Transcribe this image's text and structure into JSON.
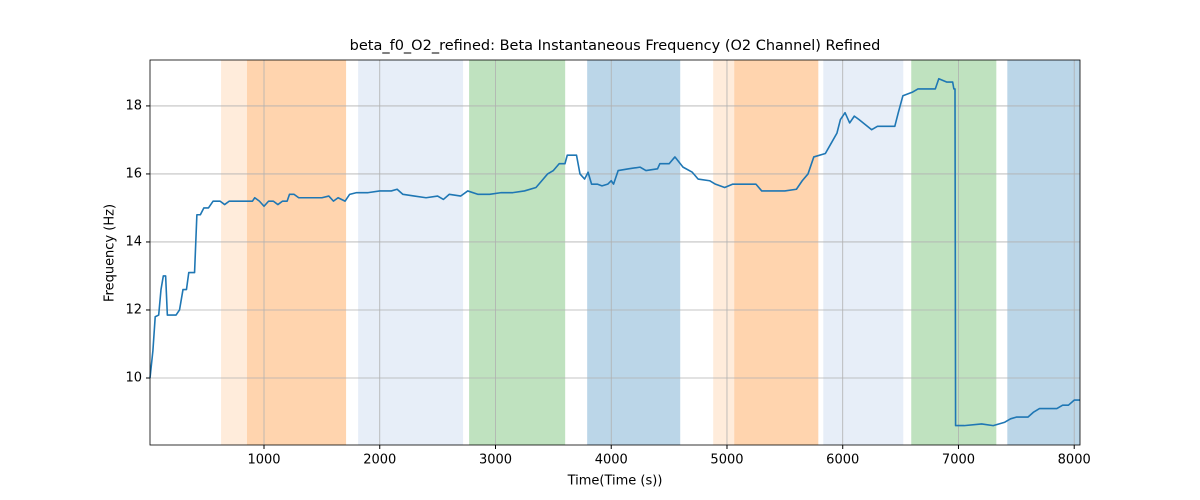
{
  "chart_data": {
    "type": "line",
    "title": "beta_f0_O2_refined: Beta Instantaneous Frequency (O2 Channel) Refined",
    "x_label": "Time(Time (s))",
    "y_label": "Frequency (Hz)",
    "color": "#1f77b4",
    "grid": true,
    "xlim": [
      15,
      8050
    ],
    "ylim": [
      8.03,
      19.35
    ],
    "xticks": [
      1000,
      2000,
      3000,
      4000,
      5000,
      6000,
      7000,
      8000
    ],
    "yticks": [
      10,
      12,
      14,
      16,
      18
    ],
    "spans": [
      {
        "x0": 629,
        "x1": 1709,
        "color": "#ff7f0e",
        "alpha": 0.15
      },
      {
        "x0": 853,
        "x1": 1709,
        "color": "#ff7f0e",
        "alpha": 0.22
      },
      {
        "x0": 1813,
        "x1": 2720,
        "color": "#aec7e8",
        "alpha": 0.3
      },
      {
        "x0": 2772,
        "x1": 3602,
        "color": "#2ca02c",
        "alpha": 0.3
      },
      {
        "x0": 3792,
        "x1": 4596,
        "color": "#1f77b4",
        "alpha": 0.3
      },
      {
        "x0": 4881,
        "x1": 5789,
        "color": "#ff7f0e",
        "alpha": 0.15
      },
      {
        "x0": 5063,
        "x1": 5789,
        "color": "#ff7f0e",
        "alpha": 0.22
      },
      {
        "x0": 5832,
        "x1": 6523,
        "color": "#aec7e8",
        "alpha": 0.3
      },
      {
        "x0": 6592,
        "x1": 7327,
        "color": "#2ca02c",
        "alpha": 0.3
      },
      {
        "x0": 7422,
        "x1": 8050,
        "color": "#1f77b4",
        "alpha": 0.3
      }
    ],
    "x": [
      15,
      40,
      60,
      90,
      110,
      130,
      150,
      165,
      240,
      270,
      300,
      330,
      350,
      400,
      420,
      450,
      480,
      520,
      560,
      620,
      660,
      700,
      900,
      920,
      960,
      1000,
      1040,
      1080,
      1120,
      1160,
      1200,
      1220,
      1260,
      1300,
      1400,
      1500,
      1560,
      1600,
      1640,
      1700,
      1740,
      1800,
      1900,
      2000,
      2100,
      2150,
      2200,
      2300,
      2400,
      2500,
      2550,
      2600,
      2700,
      2760,
      2850,
      2950,
      3050,
      3150,
      3250,
      3350,
      3400,
      3450,
      3500,
      3550,
      3600,
      3620,
      3700,
      3730,
      3770,
      3800,
      3830,
      3880,
      3920,
      3970,
      4000,
      4020,
      4060,
      4150,
      4250,
      4300,
      4400,
      4420,
      4500,
      4550,
      4620,
      4700,
      4750,
      4850,
      4900,
      4980,
      5050,
      5250,
      5300,
      5400,
      5500,
      5600,
      5650,
      5700,
      5750,
      5850,
      5900,
      5950,
      5980,
      6020,
      6060,
      6100,
      6140,
      6250,
      6300,
      6450,
      6480,
      6520,
      6600,
      6650,
      6800,
      6830,
      6900,
      6950,
      6960,
      6970,
      6975,
      7050,
      7200,
      7300,
      7400,
      7450,
      7500,
      7600,
      7650,
      7700,
      7800,
      7850,
      7900,
      7950,
      8000,
      8050
    ],
    "values": [
      10.0,
      10.8,
      11.8,
      11.85,
      12.6,
      13.0,
      13.0,
      11.85,
      11.85,
      12.0,
      12.6,
      12.6,
      13.1,
      13.1,
      14.8,
      14.8,
      15.0,
      15.0,
      15.2,
      15.2,
      15.1,
      15.2,
      15.2,
      15.3,
      15.2,
      15.05,
      15.2,
      15.2,
      15.1,
      15.2,
      15.2,
      15.4,
      15.4,
      15.3,
      15.3,
      15.3,
      15.35,
      15.2,
      15.3,
      15.2,
      15.4,
      15.45,
      15.45,
      15.5,
      15.5,
      15.55,
      15.4,
      15.35,
      15.3,
      15.35,
      15.25,
      15.4,
      15.35,
      15.5,
      15.4,
      15.4,
      15.45,
      15.45,
      15.5,
      15.6,
      15.8,
      16.0,
      16.1,
      16.3,
      16.3,
      16.55,
      16.55,
      16.0,
      15.85,
      16.05,
      15.7,
      15.7,
      15.65,
      15.7,
      15.8,
      15.7,
      16.1,
      16.15,
      16.2,
      16.1,
      16.15,
      16.3,
      16.3,
      16.5,
      16.2,
      16.05,
      15.85,
      15.8,
      15.7,
      15.6,
      15.7,
      15.7,
      15.5,
      15.5,
      15.5,
      15.55,
      15.8,
      16.0,
      16.5,
      16.6,
      16.9,
      17.2,
      17.6,
      17.8,
      17.5,
      17.7,
      17.6,
      17.3,
      17.4,
      17.4,
      17.8,
      18.3,
      18.4,
      18.5,
      18.5,
      18.8,
      18.7,
      18.7,
      18.5,
      18.5,
      8.6,
      8.6,
      8.65,
      8.6,
      8.7,
      8.8,
      8.85,
      8.85,
      9.0,
      9.1,
      9.1,
      9.1,
      9.2,
      9.2,
      9.35,
      9.35
    ]
  }
}
